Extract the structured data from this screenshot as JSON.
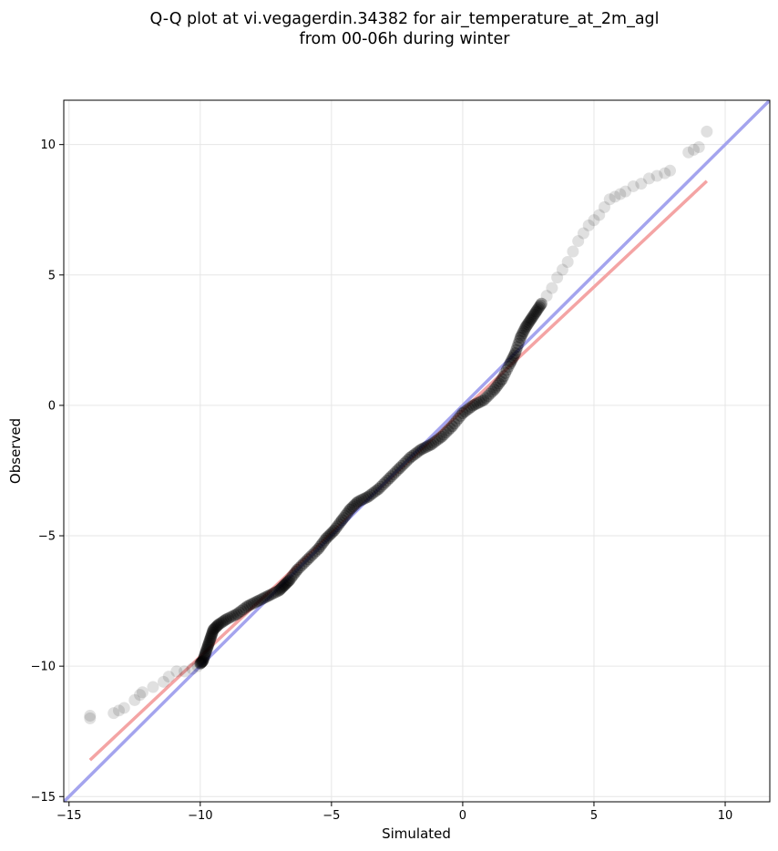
{
  "chart_data": {
    "type": "scatter",
    "title_line1": "Q-Q plot at vi.vegagerdin.34382 for air_temperature_at_2m_agl",
    "title_line2": "from 00-06h during winter",
    "xlabel": "Simulated",
    "ylabel": "Observed",
    "xlim": [
      -15.2,
      11.7
    ],
    "ylim": [
      -15.2,
      11.7
    ],
    "xticks": [
      -15,
      -10,
      -5,
      0,
      5,
      10
    ],
    "yticks": [
      -15,
      -10,
      -5,
      0,
      5,
      10
    ],
    "xtick_labels": [
      "−15",
      "−10",
      "−5",
      "0",
      "5",
      "10"
    ],
    "ytick_labels": [
      "−15",
      "−10",
      "−5",
      "0",
      "5",
      "10"
    ],
    "grid": true,
    "reference_line": {
      "color": "#a4a4ee",
      "x": [
        -15.2,
        11.7
      ],
      "y": [
        -15.2,
        11.7
      ]
    },
    "fit_line": {
      "color": "#f4a4a4",
      "x": [
        -14.2,
        9.3
      ],
      "y": [
        -13.6,
        8.6
      ]
    },
    "point_color": "#000000",
    "quantiles": {
      "x": [
        -14.2,
        -14.2,
        -13.3,
        -13.1,
        -12.9,
        -12.5,
        -12.3,
        -12.2,
        -11.8,
        -11.4,
        -11.2,
        -10.9,
        -10.6,
        -10.3,
        -10.1,
        -10.0,
        -9.9,
        -9.8,
        -9.7,
        -9.6,
        -9.5,
        -9.3,
        -9.0,
        -8.6,
        -8.2,
        -7.8,
        -7.4,
        -7.0,
        -6.8,
        -6.6,
        -6.3,
        -5.9,
        -5.5,
        -5.2,
        -4.9,
        -4.6,
        -4.3,
        -4.0,
        -3.6,
        -3.2,
        -2.8,
        -2.4,
        -2.0,
        -1.6,
        -1.2,
        -0.8,
        -0.4,
        0.0,
        0.4,
        0.8,
        1.2,
        1.5,
        1.8,
        2.0,
        2.2,
        2.4,
        2.6,
        2.8,
        3.0,
        3.2,
        3.4,
        3.6,
        3.8,
        4.0,
        4.2,
        4.4,
        4.6,
        4.8,
        5.0,
        5.2,
        5.4,
        5.6,
        5.8,
        6.0,
        6.2,
        6.5,
        6.8,
        7.1,
        7.4,
        7.7,
        7.9,
        8.6,
        8.8,
        9.0,
        9.3
      ],
      "y": [
        -12.0,
        -11.9,
        -11.8,
        -11.7,
        -11.6,
        -11.3,
        -11.1,
        -11.0,
        -10.8,
        -10.6,
        -10.4,
        -10.2,
        -10.2,
        -10.1,
        -10.0,
        -9.9,
        -9.8,
        -9.5,
        -9.2,
        -8.9,
        -8.6,
        -8.4,
        -8.2,
        -8.0,
        -7.7,
        -7.5,
        -7.3,
        -7.1,
        -6.9,
        -6.7,
        -6.3,
        -5.9,
        -5.5,
        -5.1,
        -4.8,
        -4.4,
        -4.0,
        -3.7,
        -3.5,
        -3.2,
        -2.8,
        -2.4,
        -2.0,
        -1.7,
        -1.5,
        -1.2,
        -0.8,
        -0.3,
        0.0,
        0.2,
        0.6,
        1.0,
        1.6,
        2.0,
        2.6,
        3.0,
        3.3,
        3.6,
        3.9,
        4.2,
        4.5,
        4.9,
        5.2,
        5.5,
        5.9,
        6.3,
        6.6,
        6.9,
        7.1,
        7.3,
        7.6,
        7.9,
        8.0,
        8.1,
        8.2,
        8.4,
        8.5,
        8.7,
        8.8,
        8.9,
        9.0,
        9.7,
        9.8,
        9.9,
        10.5
      ]
    }
  }
}
